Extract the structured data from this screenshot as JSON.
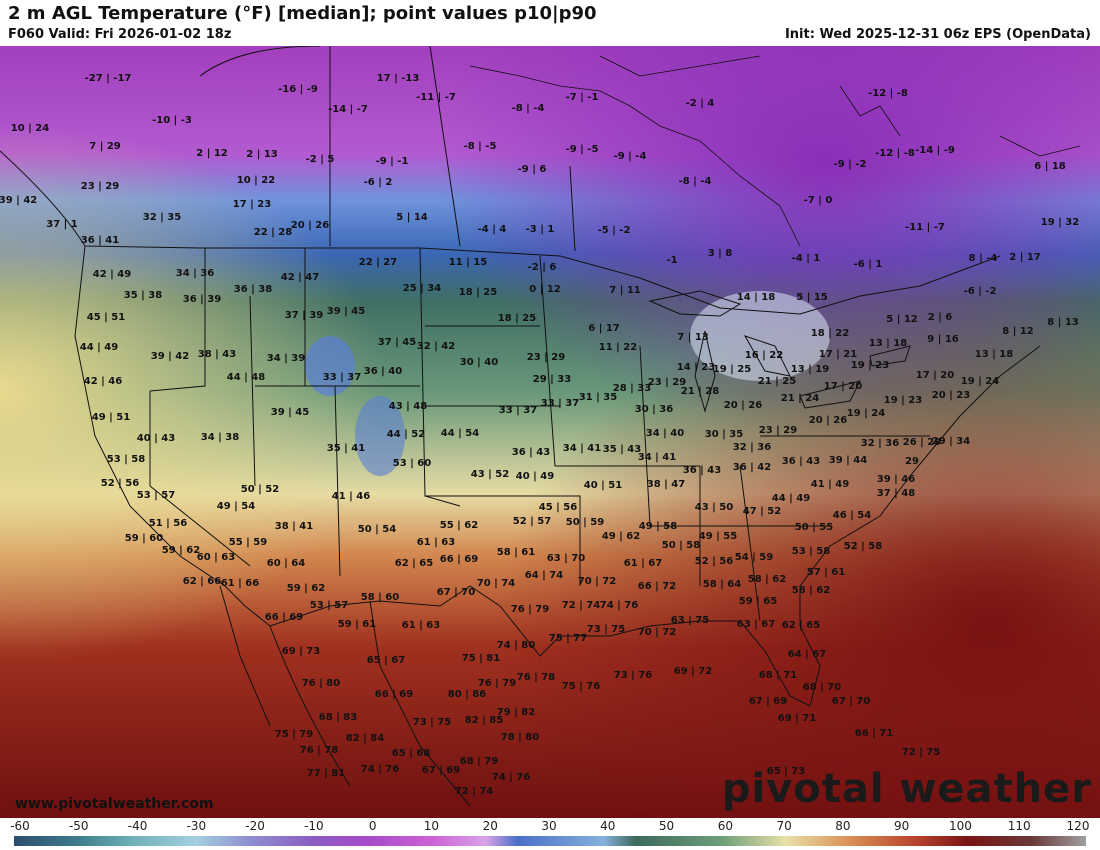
{
  "header": {
    "title": "2 m AGL Temperature (°F) [median]; point values p10|p90",
    "valid": "F060 Valid: Fri 2026-01-02 18z",
    "init": "Init: Wed 2025-12-31 06z EPS (OpenData)"
  },
  "footer": {
    "url": "www.pivotalweather.com",
    "brand": "pivotal weather"
  },
  "colorbar": {
    "ticks": [
      "-60",
      "-50",
      "-40",
      "-30",
      "-20",
      "-10",
      "0",
      "10",
      "20",
      "30",
      "40",
      "50",
      "60",
      "70",
      "80",
      "90",
      "100",
      "110",
      "120"
    ],
    "values": [
      -60,
      -50,
      -40,
      -30,
      -20,
      -10,
      0,
      10,
      20,
      30,
      40,
      50,
      60,
      70,
      80,
      90,
      100,
      110,
      120
    ],
    "colors": [
      "#2d4d6e",
      "#3f7d8c",
      "#6fb0b8",
      "#a4cfe0",
      "#8e8ecf",
      "#8a5cc2",
      "#a64bc8",
      "#cd62d6",
      "#d8a3e8",
      "#4a6fc8",
      "#86b0dc",
      "#3d6a5c",
      "#6d9e7a",
      "#e8e0a8",
      "#d98f55",
      "#b8442e",
      "#7a1414",
      "#6a3a3a",
      "#a0a0a0"
    ]
  },
  "map": {
    "point_values": [
      [
        "-27|-17",
        108,
        35
      ],
      [
        "-16|-9",
        298,
        46
      ],
      [
        "17|-13",
        398,
        35
      ],
      [
        "-11|-7",
        436,
        54
      ],
      [
        "-8|-4",
        528,
        65
      ],
      [
        "-7|-1",
        582,
        54
      ],
      [
        "-2|4",
        700,
        60
      ],
      [
        "-12|-8",
        888,
        50
      ],
      [
        "10|24",
        30,
        85
      ],
      [
        "-10|-3",
        172,
        77
      ],
      [
        "-14|-7",
        348,
        66
      ],
      [
        "7|29",
        105,
        103
      ],
      [
        "2|12",
        212,
        110
      ],
      [
        "2|13",
        262,
        111
      ],
      [
        "-2|5",
        320,
        116
      ],
      [
        "-9|-1",
        392,
        118
      ],
      [
        "-8|-5",
        480,
        103
      ],
      [
        "-9|-5",
        582,
        106
      ],
      [
        "-9|-4",
        630,
        113
      ],
      [
        "-9|-2",
        850,
        121
      ],
      [
        "-12|-8",
        895,
        110
      ],
      [
        "-14|-9",
        935,
        107
      ],
      [
        "6|18",
        1050,
        123
      ],
      [
        "23|29",
        100,
        143
      ],
      [
        "10|22",
        256,
        137
      ],
      [
        "-6|2",
        378,
        139
      ],
      [
        "-9|6",
        532,
        126
      ],
      [
        "-8|-4",
        695,
        138
      ],
      [
        "-7|0",
        818,
        157
      ],
      [
        "39|42",
        18,
        157
      ],
      [
        "17|23",
        252,
        161
      ],
      [
        "32|35",
        162,
        174
      ],
      [
        "5|14",
        412,
        174
      ],
      [
        "37|1",
        62,
        181
      ],
      [
        "-4|4",
        492,
        186
      ],
      [
        "-3|1",
        540,
        186
      ],
      [
        "-5|-2",
        614,
        187
      ],
      [
        "-11|-7",
        925,
        184
      ],
      [
        "19|32",
        1060,
        179
      ],
      [
        "22|28",
        273,
        189
      ],
      [
        "20|26",
        310,
        182
      ],
      [
        "36|41",
        100,
        197
      ],
      [
        "3|8",
        720,
        210
      ],
      [
        "-4|1",
        806,
        215
      ],
      [
        "-6|1",
        868,
        221
      ],
      [
        "8|-4",
        983,
        215
      ],
      [
        "2|17",
        1025,
        214
      ],
      [
        "22|27",
        378,
        219
      ],
      [
        "11|15",
        468,
        219
      ],
      [
        "-2|6",
        542,
        224
      ],
      [
        "-1",
        672,
        217
      ],
      [
        "34|36",
        195,
        230
      ],
      [
        "42|47",
        300,
        234
      ],
      [
        "42|49",
        112,
        231
      ],
      [
        "-6|-2",
        980,
        248
      ],
      [
        "25|34",
        422,
        245
      ],
      [
        "18|25",
        478,
        249
      ],
      [
        "0|12",
        545,
        246
      ],
      [
        "7|11",
        625,
        247
      ],
      [
        "14|18",
        756,
        254
      ],
      [
        "5|15",
        812,
        254
      ],
      [
        "35|38",
        143,
        252
      ],
      [
        "36|39",
        202,
        256
      ],
      [
        "36|38",
        253,
        246
      ],
      [
        "45|51",
        106,
        274
      ],
      [
        "37|39",
        304,
        272
      ],
      [
        "39|45",
        346,
        268
      ],
      [
        "18|25",
        517,
        275
      ],
      [
        "6|17",
        604,
        285
      ],
      [
        "7|13",
        693,
        294
      ],
      [
        "5|12",
        902,
        276
      ],
      [
        "2|6",
        940,
        274
      ],
      [
        "8|12",
        1018,
        288
      ],
      [
        "8|13",
        1063,
        279
      ],
      [
        "44|49",
        99,
        304
      ],
      [
        "38|43",
        217,
        311
      ],
      [
        "34|39",
        286,
        315
      ],
      [
        "37|45",
        397,
        299
      ],
      [
        "32|42",
        436,
        303
      ],
      [
        "11|22",
        618,
        304
      ],
      [
        "16|22",
        764,
        312
      ],
      [
        "18|22",
        830,
        290
      ],
      [
        "13|18",
        888,
        300
      ],
      [
        "9|16",
        943,
        296
      ],
      [
        "13|18",
        994,
        311
      ],
      [
        "39|42",
        170,
        313
      ],
      [
        "23|29",
        546,
        314
      ],
      [
        "14|23",
        696,
        324
      ],
      [
        "19|25",
        732,
        326
      ],
      [
        "13|19",
        810,
        326
      ],
      [
        "17|21",
        838,
        311
      ],
      [
        "19|23",
        870,
        322
      ],
      [
        "42|46",
        103,
        338
      ],
      [
        "44|48",
        246,
        334
      ],
      [
        "33|37",
        342,
        334
      ],
      [
        "36|40",
        383,
        328
      ],
      [
        "30|40",
        479,
        319
      ],
      [
        "29|33",
        552,
        336
      ],
      [
        "28|33",
        632,
        345
      ],
      [
        "23|29",
        667,
        339
      ],
      [
        "21|28",
        700,
        348
      ],
      [
        "21|25",
        777,
        338
      ],
      [
        "17|20",
        843,
        343
      ],
      [
        "17|20",
        935,
        332
      ],
      [
        "19|24",
        980,
        338
      ],
      [
        "49|51",
        111,
        374
      ],
      [
        "39|45",
        290,
        369
      ],
      [
        "43|48",
        408,
        363
      ],
      [
        "33|37",
        518,
        367
      ],
      [
        "33|37",
        560,
        360
      ],
      [
        "31|35",
        598,
        354
      ],
      [
        "30|36",
        654,
        366
      ],
      [
        "20|26",
        743,
        362
      ],
      [
        "21|24",
        800,
        355
      ],
      [
        "19|23",
        903,
        357
      ],
      [
        "19|24",
        866,
        370
      ],
      [
        "20|23",
        951,
        352
      ],
      [
        "40|43",
        156,
        395
      ],
      [
        "34|38",
        220,
        394
      ],
      [
        "44|52",
        406,
        391
      ],
      [
        "44|54",
        460,
        390
      ],
      [
        "34|40",
        665,
        390
      ],
      [
        "30|35",
        724,
        391
      ],
      [
        "23|29",
        778,
        387
      ],
      [
        "20|26",
        828,
        377
      ],
      [
        "32|36",
        880,
        400
      ],
      [
        "26|29",
        922,
        399
      ],
      [
        "29|34",
        951,
        398
      ],
      [
        "35|41",
        346,
        405
      ],
      [
        "36|43",
        531,
        409
      ],
      [
        "34|41",
        582,
        405
      ],
      [
        "35|43",
        622,
        406
      ],
      [
        "34|41",
        657,
        414
      ],
      [
        "32|36",
        752,
        404
      ],
      [
        "53|58",
        126,
        416
      ],
      [
        "53|60",
        412,
        420
      ],
      [
        "43|52",
        490,
        431
      ],
      [
        "40|49",
        535,
        433
      ],
      [
        "36|43",
        702,
        427
      ],
      [
        "36|42",
        752,
        424
      ],
      [
        "36|43",
        801,
        418
      ],
      [
        "39|44",
        848,
        417
      ],
      [
        "29",
        912,
        418
      ],
      [
        "52|56",
        120,
        440
      ],
      [
        "40|51",
        603,
        442
      ],
      [
        "38|47",
        666,
        441
      ],
      [
        "41|49",
        830,
        441
      ],
      [
        "39|46",
        896,
        436
      ],
      [
        "50|52",
        260,
        446
      ],
      [
        "53|57",
        156,
        452
      ],
      [
        "41|46",
        351,
        453
      ],
      [
        "44|49",
        791,
        455
      ],
      [
        "37|48",
        896,
        450
      ],
      [
        "49|54",
        236,
        463
      ],
      [
        "45|56",
        558,
        464
      ],
      [
        "43|50",
        714,
        464
      ],
      [
        "47|52",
        762,
        468
      ],
      [
        "46|54",
        852,
        472
      ],
      [
        "51|56",
        168,
        480
      ],
      [
        "38|41",
        294,
        483
      ],
      [
        "50|54",
        377,
        486
      ],
      [
        "52|57",
        532,
        478
      ],
      [
        "50|59",
        585,
        479
      ],
      [
        "49|58",
        658,
        483
      ],
      [
        "50|55",
        814,
        484
      ],
      [
        "59|60",
        144,
        495
      ],
      [
        "55|59",
        248,
        499
      ],
      [
        "55|62",
        459,
        482
      ],
      [
        "61|63",
        436,
        499
      ],
      [
        "49|62",
        621,
        493
      ],
      [
        "49|55",
        718,
        493
      ],
      [
        "50|58",
        681,
        502
      ],
      [
        "53|58",
        811,
        508
      ],
      [
        "52|58",
        863,
        503
      ],
      [
        "59|62",
        181,
        507
      ],
      [
        "60|63",
        216,
        514
      ],
      [
        "62|65",
        414,
        520
      ],
      [
        "66|69",
        459,
        516
      ],
      [
        "58|61",
        516,
        509
      ],
      [
        "63|70",
        566,
        515
      ],
      [
        "61|67",
        643,
        520
      ],
      [
        "52|56",
        714,
        518
      ],
      [
        "54|59",
        754,
        514
      ],
      [
        "60|64",
        286,
        520
      ],
      [
        "62|66",
        202,
        538
      ],
      [
        "61|66",
        240,
        540
      ],
      [
        "70|74",
        496,
        540
      ],
      [
        "64|74",
        544,
        532
      ],
      [
        "70|72",
        597,
        538
      ],
      [
        "66|72",
        657,
        543
      ],
      [
        "58|64",
        722,
        541
      ],
      [
        "58|62",
        767,
        536
      ],
      [
        "57|61",
        826,
        529
      ],
      [
        "59|62",
        306,
        545
      ],
      [
        "67|70",
        456,
        549
      ],
      [
        "58|60",
        380,
        554
      ],
      [
        "58|62",
        811,
        547
      ],
      [
        "53|57",
        329,
        562
      ],
      [
        "76|79",
        530,
        566
      ],
      [
        "72|74",
        581,
        562
      ],
      [
        "74|76",
        619,
        562
      ],
      [
        "59|65",
        758,
        558
      ],
      [
        "66|69",
        284,
        574
      ],
      [
        "59|61",
        357,
        581
      ],
      [
        "61|63",
        421,
        582
      ],
      [
        "63|75",
        690,
        577
      ],
      [
        "63|67",
        756,
        581
      ],
      [
        "62|65",
        801,
        582
      ],
      [
        "73|75",
        606,
        586
      ],
      [
        "70|72",
        657,
        589
      ],
      [
        "75|77",
        568,
        595
      ],
      [
        "74|80",
        516,
        602
      ],
      [
        "69|73",
        301,
        608
      ],
      [
        "65|67",
        386,
        617
      ],
      [
        "75|81",
        481,
        615
      ],
      [
        "64|67",
        807,
        611
      ],
      [
        "73|76",
        633,
        632
      ],
      [
        "69|72",
        693,
        628
      ],
      [
        "76|78",
        536,
        634
      ],
      [
        "68|71",
        778,
        632
      ],
      [
        "76|80",
        321,
        640
      ],
      [
        "76|79",
        497,
        640
      ],
      [
        "75|76",
        581,
        643
      ],
      [
        "66|69",
        394,
        651
      ],
      [
        "80|86",
        467,
        651
      ],
      [
        "68|70",
        822,
        644
      ],
      [
        "67|69",
        768,
        658
      ],
      [
        "67|70",
        851,
        658
      ],
      [
        "79|82",
        516,
        669
      ],
      [
        "68|83",
        338,
        674
      ],
      [
        "69|71",
        797,
        675
      ],
      [
        "73|75",
        432,
        679
      ],
      [
        "82|85",
        484,
        677
      ],
      [
        "75|79",
        294,
        691
      ],
      [
        "82|84",
        365,
        695
      ],
      [
        "78|80",
        520,
        694
      ],
      [
        "66|71",
        874,
        690
      ],
      [
        "76|78",
        319,
        707
      ],
      [
        "65|68",
        411,
        710
      ],
      [
        "72|75",
        921,
        709
      ],
      [
        "68|79",
        479,
        718
      ],
      [
        "74|76",
        380,
        726
      ],
      [
        "67|69",
        441,
        727
      ],
      [
        "77|81",
        326,
        730
      ],
      [
        "74|76",
        511,
        734
      ],
      [
        "65|73",
        786,
        728
      ],
      [
        "72|74",
        474,
        748
      ]
    ]
  }
}
